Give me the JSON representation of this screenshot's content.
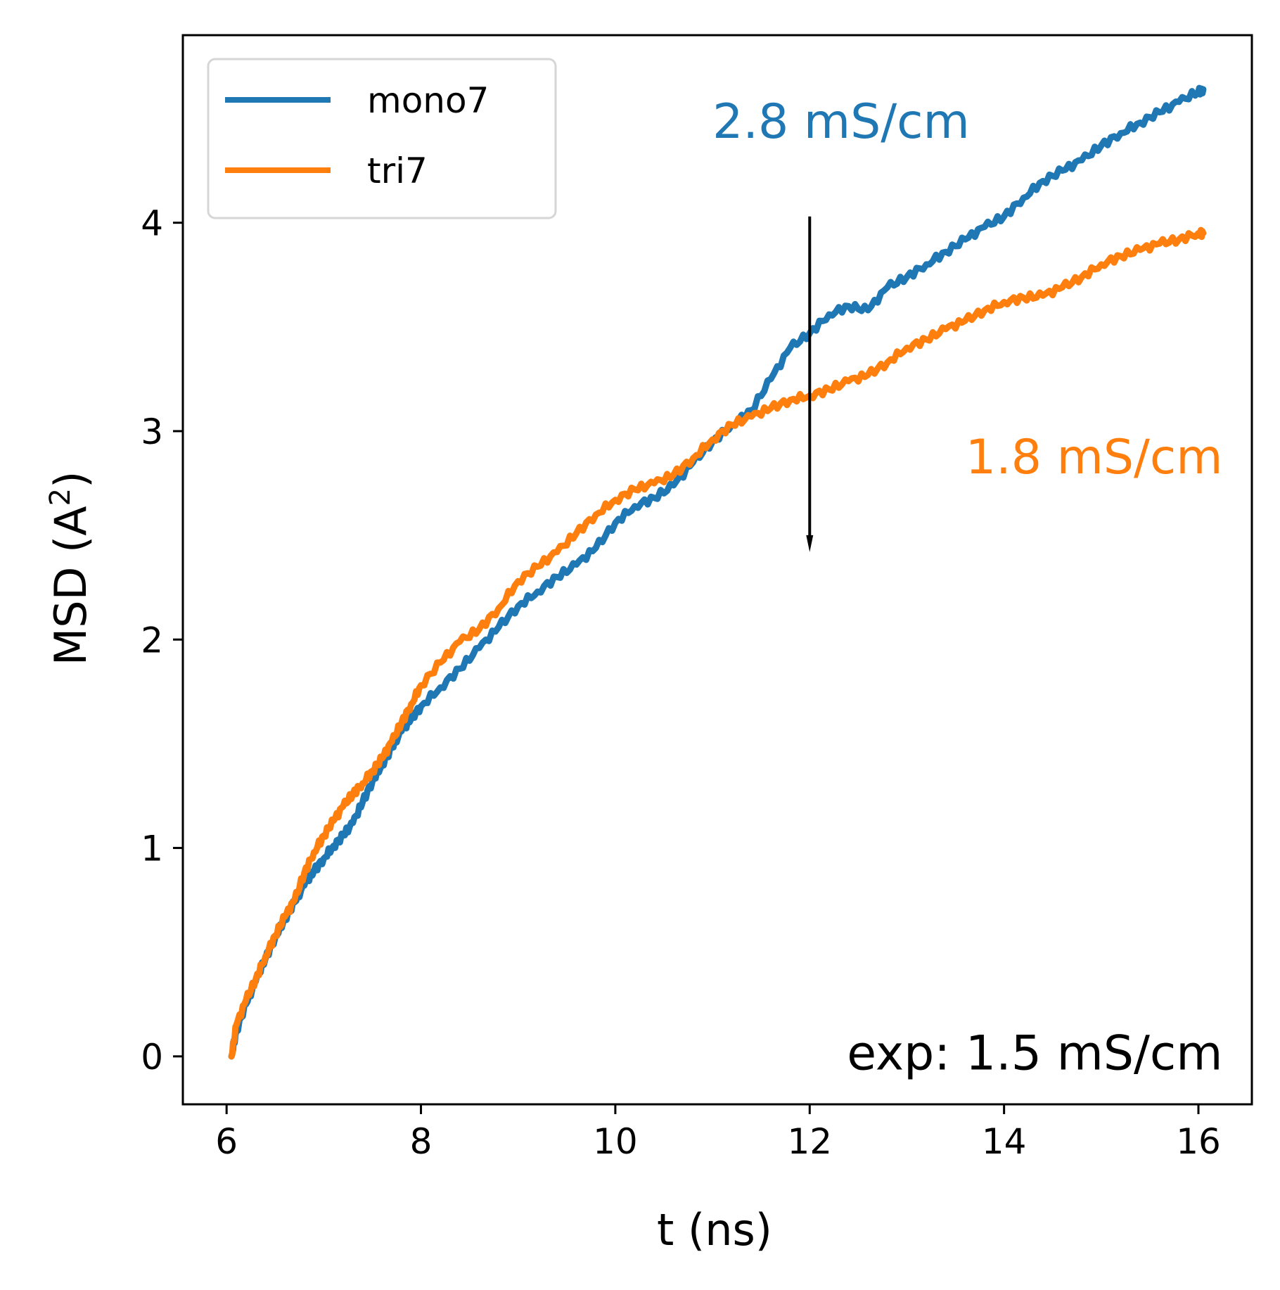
{
  "chart_data": {
    "type": "line",
    "title": "",
    "xlabel": "t (ns)",
    "ylabel": "MSD (A²)",
    "xlim": [
      5.55,
      16.55
    ],
    "ylim": [
      -0.23,
      4.9
    ],
    "xticks": [
      6,
      8,
      10,
      12,
      14,
      16
    ],
    "yticks": [
      0,
      1,
      2,
      3,
      4
    ],
    "grid": false,
    "legend_position": "top-left",
    "series": [
      {
        "name": "mono7",
        "color": "#1f77b4",
        "x": [
          6.05,
          6.1,
          6.2,
          6.3,
          6.4,
          6.5,
          6.6,
          6.7,
          6.8,
          6.9,
          7.0,
          7.1,
          7.2,
          7.3,
          7.4,
          7.5,
          7.6,
          7.7,
          7.8,
          7.9,
          8.0,
          8.2,
          8.4,
          8.6,
          8.8,
          9.0,
          9.2,
          9.4,
          9.6,
          9.8,
          10.0,
          10.2,
          10.4,
          10.6,
          10.8,
          11.0,
          11.2,
          11.4,
          11.6,
          11.8,
          12.0,
          12.2,
          12.4,
          12.6,
          12.8,
          13.0,
          13.2,
          13.4,
          13.6,
          13.8,
          14.0,
          14.2,
          14.4,
          14.6,
          14.8,
          15.0,
          15.2,
          15.4,
          15.6,
          15.8,
          16.0,
          16.05
        ],
        "y": [
          0.0,
          0.12,
          0.25,
          0.36,
          0.47,
          0.57,
          0.66,
          0.74,
          0.82,
          0.89,
          0.95,
          1.01,
          1.06,
          1.12,
          1.22,
          1.32,
          1.4,
          1.48,
          1.56,
          1.62,
          1.68,
          1.77,
          1.86,
          1.96,
          2.06,
          2.16,
          2.23,
          2.3,
          2.36,
          2.44,
          2.56,
          2.64,
          2.68,
          2.74,
          2.85,
          2.95,
          3.03,
          3.1,
          3.25,
          3.4,
          3.47,
          3.56,
          3.6,
          3.58,
          3.69,
          3.74,
          3.8,
          3.86,
          3.92,
          3.98,
          4.03,
          4.12,
          4.2,
          4.25,
          4.3,
          4.37,
          4.43,
          4.48,
          4.53,
          4.58,
          4.63,
          4.64
        ]
      },
      {
        "name": "tri7",
        "color": "#ff7f0e",
        "x": [
          6.05,
          6.1,
          6.2,
          6.3,
          6.4,
          6.5,
          6.6,
          6.7,
          6.8,
          6.9,
          7.0,
          7.1,
          7.2,
          7.3,
          7.4,
          7.5,
          7.6,
          7.7,
          7.8,
          7.9,
          8.0,
          8.2,
          8.4,
          8.6,
          8.8,
          9.0,
          9.2,
          9.4,
          9.6,
          9.8,
          10.0,
          10.2,
          10.4,
          10.6,
          10.8,
          11.0,
          11.2,
          11.4,
          11.6,
          11.8,
          12.0,
          12.2,
          12.4,
          12.6,
          12.8,
          13.0,
          13.2,
          13.4,
          13.6,
          13.8,
          14.0,
          14.2,
          14.4,
          14.6,
          14.8,
          15.0,
          15.2,
          15.4,
          15.6,
          15.8,
          16.0,
          16.05
        ],
        "y": [
          0.0,
          0.15,
          0.27,
          0.37,
          0.48,
          0.58,
          0.67,
          0.75,
          0.88,
          0.98,
          1.06,
          1.13,
          1.2,
          1.26,
          1.31,
          1.37,
          1.43,
          1.51,
          1.6,
          1.69,
          1.78,
          1.89,
          1.99,
          2.05,
          2.15,
          2.28,
          2.35,
          2.42,
          2.51,
          2.6,
          2.67,
          2.72,
          2.75,
          2.79,
          2.87,
          2.96,
          3.03,
          3.07,
          3.11,
          3.15,
          3.17,
          3.2,
          3.24,
          3.27,
          3.33,
          3.4,
          3.44,
          3.49,
          3.53,
          3.58,
          3.62,
          3.64,
          3.65,
          3.69,
          3.74,
          3.8,
          3.84,
          3.87,
          3.9,
          3.92,
          3.95,
          3.95
        ]
      }
    ],
    "annotations": [
      {
        "text": "2.8 mS/cm",
        "color": "#1f77b4",
        "x": 11.0,
        "y": 4.47,
        "align": "start"
      },
      {
        "text": "1.8 mS/cm",
        "color": "#ff7f0e",
        "x": 16.25,
        "y": 2.86,
        "align": "end"
      },
      {
        "text": "exp: 1.5 mS/cm",
        "color": "#000000",
        "x": 16.25,
        "y": 0.0,
        "align": "end"
      }
    ],
    "arrow": {
      "x": 12.0,
      "y_start": 4.03,
      "y_end": 2.42,
      "color": "#000000"
    }
  }
}
